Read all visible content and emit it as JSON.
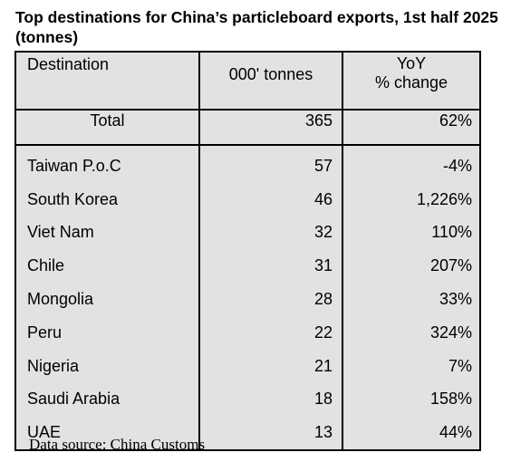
{
  "title": "Top destinations for China’s particleboard exports, 1st half 2025 (tonnes)",
  "table": {
    "headers": {
      "destination": "Destination",
      "tonnes": "000' tonnes",
      "yoy_line1": "YoY",
      "yoy_line2": "% change"
    },
    "total": {
      "label": "Total",
      "tonnes": "365",
      "yoy": "62%"
    },
    "rows": [
      {
        "destination": "Taiwan P.o.C",
        "tonnes": "57",
        "yoy": "-4%"
      },
      {
        "destination": "South Korea",
        "tonnes": "46",
        "yoy": "1,226%"
      },
      {
        "destination": "Viet Nam",
        "tonnes": "32",
        "yoy": "110%"
      },
      {
        "destination": "Chile",
        "tonnes": "31",
        "yoy": "207%"
      },
      {
        "destination": "Mongolia",
        "tonnes": "28",
        "yoy": "33%"
      },
      {
        "destination": "Peru",
        "tonnes": "22",
        "yoy": "324%"
      },
      {
        "destination": "Nigeria",
        "tonnes": "21",
        "yoy": "7%"
      },
      {
        "destination": "Saudi Arabia",
        "tonnes": "18",
        "yoy": "158%"
      },
      {
        "destination": "UAE",
        "tonnes": "13",
        "yoy": "44%"
      }
    ]
  },
  "source": "Data source: China Customs"
}
